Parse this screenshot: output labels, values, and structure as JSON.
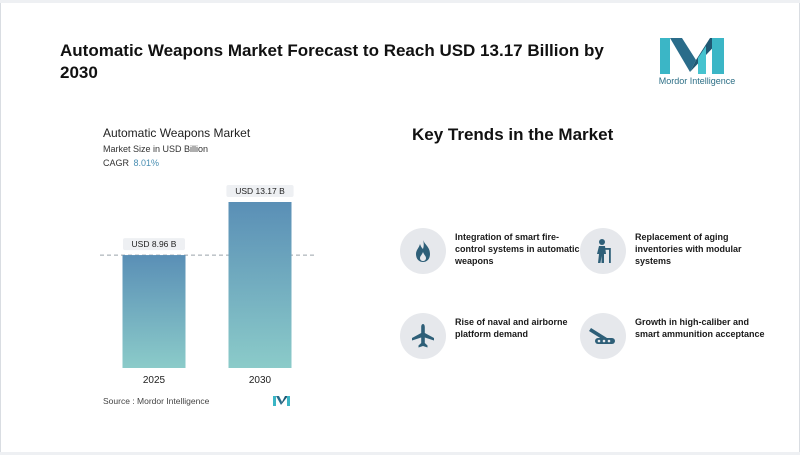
{
  "header": {
    "title": "Automatic Weapons Market Forecast to Reach USD 13.17 Billion by 2030",
    "logo_text": "Mordor Intelligence"
  },
  "chart_panel": {
    "title": "Automatic Weapons Market",
    "subtitle": "Market Size in USD Billion",
    "cagr_label": "CAGR",
    "cagr_value": "8.01%",
    "source": "Source :  Mordor Intelligence"
  },
  "chart_data": {
    "type": "bar",
    "title": "Automatic Weapons Market",
    "categories": [
      "2025",
      "2030"
    ],
    "values": [
      8.96,
      13.17
    ],
    "value_labels": [
      "USD 8.96 B",
      "USD 13.17 B"
    ],
    "ylabel": "Market Size in USD Billion",
    "ylim": [
      0,
      13.17
    ],
    "grid": false,
    "legend": "none",
    "colors": {
      "bar_top": "#5a8fb6",
      "bar_bottom": "#8bcbc9",
      "label_bg": "#eef0f3"
    }
  },
  "trends": {
    "title": "Key Trends in the Market",
    "items": [
      {
        "icon": "flame-icon",
        "text": "Integration of smart fire-control systems in automatic weapons"
      },
      {
        "icon": "elderly-person-icon",
        "text": "Replacement of aging inventories with modular systems"
      },
      {
        "icon": "airplane-icon",
        "text": "Rise of naval and airborne platform demand"
      },
      {
        "icon": "ammunition-icon",
        "text": "Growth in high-caliber and smart ammunition acceptance"
      }
    ]
  },
  "colors": {
    "accent": "#2d6f86",
    "icon_fg": "#2e5f78",
    "icon_bg": "#e6e8ec"
  }
}
